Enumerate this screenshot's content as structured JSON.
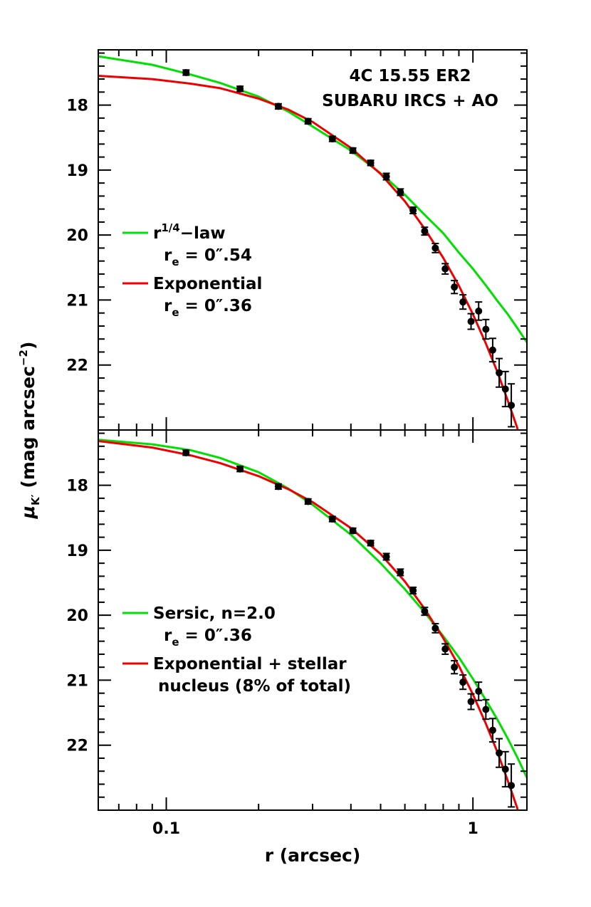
{
  "chart_data": [
    {
      "type": "scatter",
      "panel": "top",
      "annotation_lines": [
        "4C 15.55 ER2",
        "SUBARU IRCS + AO"
      ],
      "x_scale": "log",
      "xlim": [
        0.06,
        1.5
      ],
      "ylim": [
        23.0,
        17.15
      ],
      "y_inverted": true,
      "x_ticks": [
        0.1,
        1
      ],
      "x_tick_labels": [
        "0.1",
        "1"
      ],
      "y_ticks": [
        18,
        19,
        20,
        21,
        22
      ],
      "y_tick_labels": [
        "18",
        "19",
        "20",
        "21",
        "22"
      ],
      "points": {
        "x": [
          0.116,
          0.174,
          0.232,
          0.29,
          0.348,
          0.406,
          0.464,
          0.522,
          0.58,
          0.638,
          0.696,
          0.754,
          0.812,
          0.87,
          0.928,
          0.986,
          1.044,
          1.102,
          1.16,
          1.218,
          1.276,
          1.334
        ],
        "y": [
          17.5,
          17.75,
          18.02,
          18.25,
          18.52,
          18.7,
          18.89,
          19.1,
          19.34,
          19.62,
          19.94,
          20.2,
          20.52,
          20.8,
          21.03,
          21.33,
          21.17,
          21.45,
          21.77,
          22.12,
          22.37,
          22.62
        ],
        "yerr": [
          0.04,
          0.04,
          0.04,
          0.04,
          0.04,
          0.04,
          0.04,
          0.05,
          0.05,
          0.05,
          0.06,
          0.07,
          0.08,
          0.1,
          0.11,
          0.12,
          0.14,
          0.15,
          0.18,
          0.22,
          0.27,
          0.33
        ]
      },
      "series": [
        {
          "label_main": "r",
          "label_sup": "1/4",
          "label_tail": "−law",
          "param_prefix": "r",
          "param_sub": "e",
          "param_value": " = 0″.54",
          "color": "#00e000",
          "x": [
            0.06,
            0.09,
            0.12,
            0.15,
            0.2,
            0.25,
            0.3,
            0.4,
            0.5,
            0.6,
            0.7,
            0.8,
            0.9,
            1.0,
            1.1,
            1.2,
            1.3,
            1.4,
            1.5
          ],
          "y": [
            17.25,
            17.38,
            17.53,
            17.66,
            17.87,
            18.1,
            18.33,
            18.7,
            19.05,
            19.38,
            19.7,
            19.97,
            20.27,
            20.52,
            20.77,
            21.01,
            21.22,
            21.44,
            21.65
          ]
        },
        {
          "label": "Exponential",
          "param_prefix": "r",
          "param_sub": "e",
          "param_value": " = 0″.36",
          "color": "#ee0000",
          "x": [
            0.06,
            0.09,
            0.12,
            0.15,
            0.2,
            0.25,
            0.3,
            0.4,
            0.5,
            0.6,
            0.7,
            0.8,
            0.9,
            1.0,
            1.1,
            1.2,
            1.3,
            1.4
          ],
          "y": [
            17.55,
            17.6,
            17.67,
            17.74,
            17.9,
            18.07,
            18.26,
            18.66,
            19.06,
            19.48,
            19.92,
            20.35,
            20.78,
            21.22,
            21.66,
            22.1,
            22.55,
            23.0
          ]
        }
      ]
    },
    {
      "type": "scatter",
      "panel": "bottom",
      "x_scale": "log",
      "xlim": [
        0.06,
        1.5
      ],
      "ylim": [
        23.0,
        17.15
      ],
      "y_inverted": true,
      "x_ticks": [
        0.1,
        1
      ],
      "x_tick_labels": [
        "0.1",
        "1"
      ],
      "y_ticks": [
        18,
        19,
        20,
        21,
        22
      ],
      "y_tick_labels": [
        "18",
        "19",
        "20",
        "21",
        "22"
      ],
      "xlabel": "r (arcsec)",
      "points": {
        "x": [
          0.116,
          0.174,
          0.232,
          0.29,
          0.348,
          0.406,
          0.464,
          0.522,
          0.58,
          0.638,
          0.696,
          0.754,
          0.812,
          0.87,
          0.928,
          0.986,
          1.044,
          1.102,
          1.16,
          1.218,
          1.276,
          1.334
        ],
        "y": [
          17.5,
          17.75,
          18.02,
          18.25,
          18.52,
          18.7,
          18.89,
          19.1,
          19.34,
          19.62,
          19.94,
          20.2,
          20.52,
          20.8,
          21.03,
          21.33,
          21.17,
          21.45,
          21.77,
          22.12,
          22.37,
          22.62
        ],
        "yerr": [
          0.04,
          0.04,
          0.04,
          0.04,
          0.04,
          0.04,
          0.04,
          0.05,
          0.05,
          0.05,
          0.06,
          0.07,
          0.08,
          0.1,
          0.11,
          0.12,
          0.14,
          0.15,
          0.18,
          0.22,
          0.27,
          0.33
        ]
      },
      "series": [
        {
          "label": "Sersic, n=2.0",
          "param_prefix": "r",
          "param_sub": "e",
          "param_value": " = 0″.36",
          "color": "#00e000",
          "x": [
            0.06,
            0.09,
            0.12,
            0.15,
            0.2,
            0.25,
            0.3,
            0.4,
            0.5,
            0.6,
            0.7,
            0.8,
            0.9,
            1.0,
            1.1,
            1.2,
            1.3,
            1.4,
            1.5
          ],
          "y": [
            17.3,
            17.37,
            17.46,
            17.58,
            17.8,
            18.05,
            18.3,
            18.76,
            19.2,
            19.6,
            19.97,
            20.32,
            20.65,
            20.98,
            21.3,
            21.6,
            21.9,
            22.2,
            22.5
          ]
        },
        {
          "label_line1": "Exponential + stellar",
          "label_line2": "nucleus (8% of total)",
          "color": "#ee0000",
          "x": [
            0.06,
            0.09,
            0.12,
            0.15,
            0.2,
            0.25,
            0.3,
            0.4,
            0.5,
            0.6,
            0.7,
            0.8,
            0.9,
            1.0,
            1.1,
            1.2,
            1.3,
            1.4
          ],
          "y": [
            17.32,
            17.42,
            17.54,
            17.66,
            17.86,
            18.06,
            18.26,
            18.66,
            19.06,
            19.48,
            19.92,
            20.35,
            20.78,
            21.22,
            21.66,
            22.1,
            22.55,
            23.0
          ]
        }
      ]
    }
  ],
  "ylabel_symbol": "μ",
  "ylabel_sub": "K′",
  "ylabel_text": " (mag arcsec",
  "ylabel_sup": "−2",
  "ylabel_close": ")"
}
